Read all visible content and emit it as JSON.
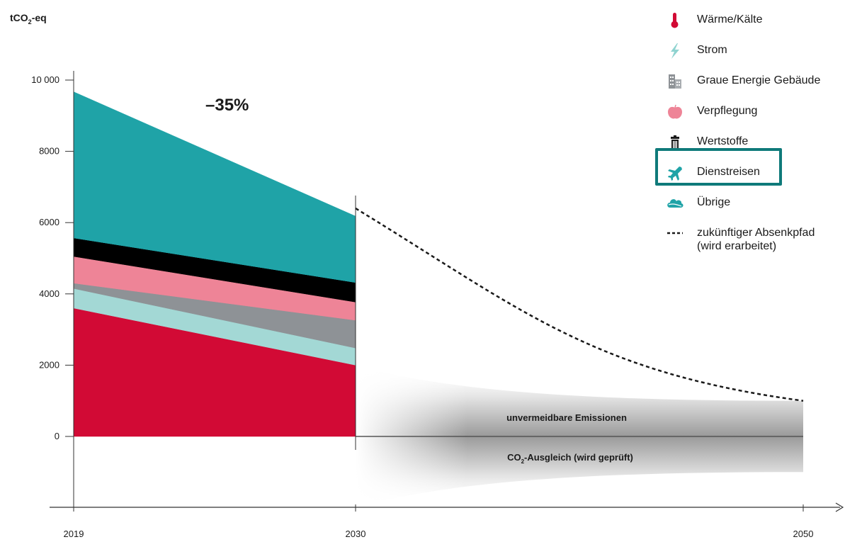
{
  "chart_data": {
    "type": "area",
    "y_unit_label": "tCO₂-eq",
    "x_ticks": [
      "2019",
      "2030",
      "2050"
    ],
    "y_ticks": [
      "10 000",
      "8000",
      "6000",
      "4000",
      "2000",
      "0"
    ],
    "ylim": [
      -2000,
      10000
    ],
    "reduction_label": "–35%",
    "stack_order_bottom_to_top": [
      "Wärme/Kälte",
      "Strom",
      "Graue Energie Gebäude",
      "Verpflegung",
      "Wertstoffe",
      "Übrige",
      "Dienstreisen"
    ],
    "series": [
      {
        "name": "Wärme/Kälte",
        "color": "#d20a35",
        "x": [
          2019,
          2030
        ],
        "values": [
          3600,
          2000
        ]
      },
      {
        "name": "Strom",
        "color": "#a3d8d5",
        "x": [
          2019,
          2030
        ],
        "values": [
          550,
          480
        ]
      },
      {
        "name": "Graue Energie Gebäude",
        "color": "#8e9296",
        "x": [
          2019,
          2030
        ],
        "values": [
          150,
          780
        ]
      },
      {
        "name": "Verpflegung",
        "color": "#ee8497",
        "x": [
          2019,
          2030
        ],
        "values": [
          750,
          510
        ]
      },
      {
        "name": "Wertstoffe",
        "color": "#000000",
        "x": [
          2019,
          2030
        ],
        "values": [
          520,
          550
        ]
      },
      {
        "name": "Übrige",
        "color": "#1fa3a7",
        "x": [
          2019,
          2030
        ],
        "values": [
          0,
          0
        ]
      },
      {
        "name": "Dienstreisen",
        "color": "#1fa3a7",
        "x": [
          2019,
          2030
        ],
        "values": [
          4100,
          1860
        ]
      }
    ],
    "future_path": {
      "name": "zukünftiger Absenkpfad (wird erarbeitet)",
      "style": "dashed",
      "x": [
        2030,
        2035,
        2040,
        2045,
        2050
      ],
      "values": [
        6400,
        4000,
        2300,
        1400,
        1000
      ]
    },
    "unavoidable_band": {
      "label": "unvermeidbare Emissionen",
      "x": [
        2030,
        2050
      ],
      "values": [
        1000,
        1000
      ]
    },
    "compensation_band": {
      "label_prefix": "CO",
      "label_sub": "2",
      "label_suffix": "-Ausgleich (wird geprüft)",
      "x": [
        2030,
        2050
      ],
      "values": [
        -1000,
        -1000
      ]
    }
  },
  "legend": {
    "items": [
      {
        "label": "Wärme/Kälte",
        "icon": "thermometer-icon",
        "color": "#d20a35"
      },
      {
        "label": "Strom",
        "icon": "lightning-icon",
        "color": "#8fd3d0"
      },
      {
        "label": "Graue Energie Gebäude",
        "icon": "building-icon",
        "color": "#8e9296"
      },
      {
        "label": "Verpflegung",
        "icon": "apple-icon",
        "color": "#ee8497"
      },
      {
        "label": "Wertstoffe",
        "icon": "trash-icon",
        "color": "#1a1a1a"
      },
      {
        "label": "Dienstreisen",
        "icon": "airplane-icon",
        "color": "#1fa3a7"
      },
      {
        "label": "Übrige",
        "icon": "cloud-icon",
        "color": "#1fa3a7"
      }
    ],
    "dashed_label_line1": "zukünftiger Absenkpfad",
    "dashed_label_line2": "(wird erarbeitet)",
    "highlight_color": "#0f7a7a"
  }
}
